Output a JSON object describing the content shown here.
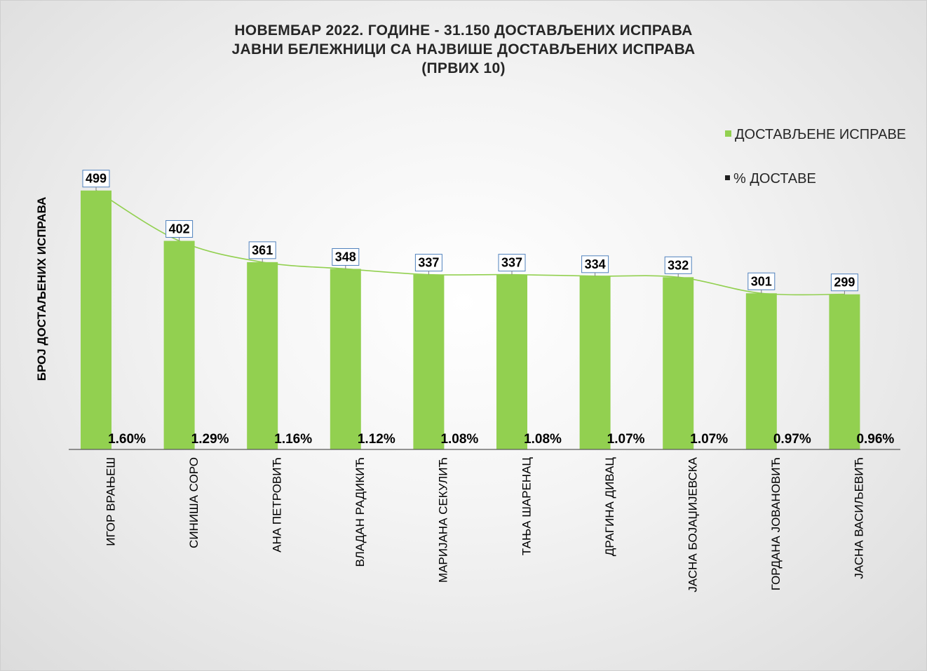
{
  "chart_data": {
    "type": "bar",
    "title": [
      "НОВЕМБАР 2022. ГОДИНЕ - 31.150 ДОСТАВЉЕНИХ ИСПРАВА",
      "ЈАВНИ БЕЛЕЖНИЦИ СА НАЈВИШЕ ДОСТАВЉЕНИХ ИСПРАВА",
      "(ПРВИХ 10)"
    ],
    "ylabel": "БРОЈ ДОСТАЉЕНИХ ИСПРАВА",
    "xlabel": "",
    "categories": [
      "ИГОР ВРАЊЕШ",
      "СИНИША СОРО",
      "АНА ПЕТРОВИЋ",
      "ВЛАДАН РАДИКИЋ",
      "МАРИЈАНА СЕКУЛИЋ",
      "ТАЊА ШАРЕНАЦ",
      "ДРАГИНА ДИВАЦ",
      "ЈАСНА БОЈАЏИЈЕВСКА",
      "ГОРДАНА ЈОВАНОВИЋ",
      "ЈАСНА ВАСИЉЕВИЋ"
    ],
    "series": [
      {
        "name": "ДОСТАВЉЕНЕ ИСПРАВЕ",
        "values": [
          499,
          402,
          361,
          348,
          337,
          337,
          334,
          332,
          301,
          299
        ],
        "color": "#92d050"
      },
      {
        "name": "% ДОСТАВЕ",
        "values": [
          1.6,
          1.29,
          1.16,
          1.12,
          1.08,
          1.08,
          1.07,
          1.07,
          0.97,
          0.96
        ],
        "labels": [
          "1.60%",
          "1.29%",
          "1.16%",
          "1.12%",
          "1.08%",
          "1.08%",
          "1.07%",
          "1.07%",
          "0.97%",
          "0.96%"
        ],
        "color": "#1f1f1f"
      }
    ],
    "value_labels": [
      "499",
      "402",
      "361",
      "348",
      "337",
      "337",
      "334",
      "332",
      "301",
      "299"
    ],
    "ylim": [
      0,
      500
    ],
    "grid": false,
    "legend_position": "top-right",
    "trendline": true,
    "trendline_color": "#92d050",
    "label_box_border": "#4f81bd"
  }
}
